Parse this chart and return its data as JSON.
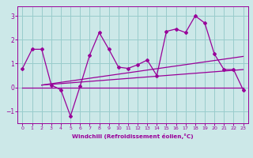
{
  "x": [
    0,
    1,
    2,
    3,
    4,
    5,
    6,
    7,
    8,
    9,
    10,
    11,
    12,
    13,
    14,
    15,
    16,
    17,
    18,
    19,
    20,
    21,
    22,
    23
  ],
  "y_main": [
    0.8,
    1.6,
    1.6,
    0.1,
    -0.1,
    -1.2,
    0.05,
    1.35,
    2.3,
    1.6,
    0.85,
    0.8,
    0.95,
    1.15,
    0.5,
    2.35,
    2.45,
    2.3,
    3.0,
    2.7,
    1.4,
    0.75,
    0.75,
    -0.1
  ],
  "trend1_x": [
    0,
    23
  ],
  "trend1_y": [
    0.0,
    0.0
  ],
  "trend2_x": [
    2,
    23
  ],
  "trend2_y": [
    0.1,
    0.75
  ],
  "trend3_x": [
    2,
    23
  ],
  "trend3_y": [
    0.1,
    1.3
  ],
  "line_color": "#990099",
  "bg_color": "#cce8e8",
  "grid_color": "#99cccc",
  "xlabel": "Windchill (Refroidissement éolien,°C)",
  "xlabel_color": "#990099",
  "tick_color": "#990099",
  "ylim": [
    -1.5,
    3.4
  ],
  "yticks": [
    -1,
    0,
    1,
    2,
    3
  ],
  "xticks": [
    0,
    1,
    2,
    3,
    4,
    5,
    6,
    7,
    8,
    9,
    10,
    11,
    12,
    13,
    14,
    15,
    16,
    17,
    18,
    19,
    20,
    21,
    22,
    23
  ],
  "xlim": [
    -0.5,
    23.5
  ]
}
